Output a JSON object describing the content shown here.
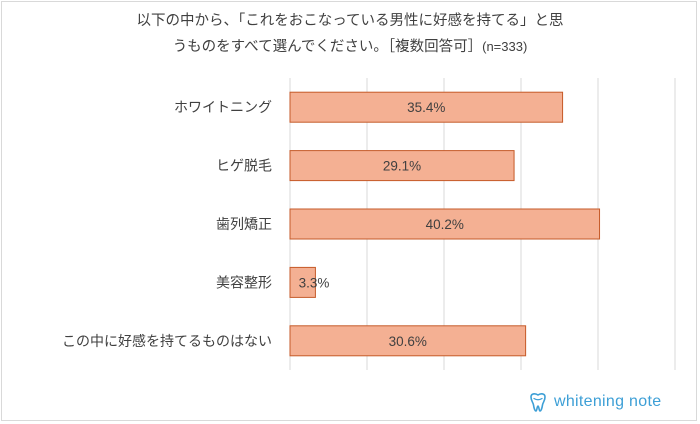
{
  "chart_data": {
    "type": "bar",
    "orientation": "horizontal",
    "title_line1": "以下の中から、「これをおこなっている男性に好感を持てる」と思",
    "title_line2": "うものをすべて選んでください。［複数回答可］",
    "sample_size": "(n=333)",
    "categories": [
      "ホワイトニング",
      "ヒゲ脱毛",
      "歯列矯正",
      "美容整形",
      "この中に好感を持てるものはない"
    ],
    "values": [
      35.4,
      29.1,
      40.2,
      3.3,
      30.6
    ],
    "data_labels": [
      "35.4%",
      "29.1%",
      "40.2%",
      "3.3%",
      "30.6%"
    ],
    "xlim": [
      0,
      50
    ],
    "grid": true,
    "xlabel": "",
    "ylabel": "",
    "colors": {
      "bar_fill": "#f4b093",
      "bar_stroke": "#c55a28",
      "grid": "#d9d9d9",
      "text": "#404040"
    }
  },
  "brand": {
    "text": "whitening note",
    "icon": "tooth-icon",
    "color": "#3d9fd6"
  }
}
